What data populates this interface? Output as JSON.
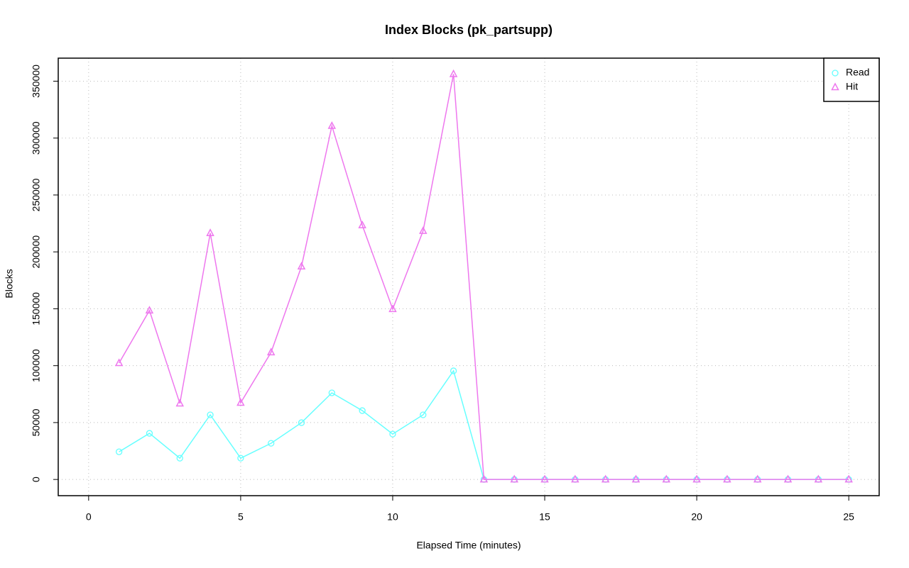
{
  "chart_data": {
    "type": "line",
    "title": "Index Blocks (pk_partsupp)",
    "x_label": "Elapsed Time (minutes)",
    "y_label": "Blocks",
    "x": [
      1,
      2,
      3,
      4,
      5,
      6,
      7,
      8,
      9,
      10,
      11,
      12,
      13,
      14,
      15,
      16,
      17,
      18,
      19,
      20,
      21,
      22,
      23,
      24,
      25
    ],
    "series": [
      {
        "name": "Read",
        "color": "#66ffff",
        "marker": "circle",
        "values": [
          24300,
          40550,
          18700,
          56800,
          18700,
          31800,
          49900,
          76100,
          60500,
          39900,
          56800,
          95460,
          0,
          0,
          0,
          0,
          0,
          0,
          0,
          0,
          0,
          0,
          0,
          0,
          0
        ]
      },
      {
        "name": "Hit",
        "color": "#ee77ee",
        "marker": "triangle",
        "values": [
          102300,
          148500,
          66800,
          216500,
          67400,
          111700,
          187200,
          310700,
          223400,
          149700,
          218400,
          356250,
          0,
          0,
          0,
          0,
          0,
          0,
          0,
          0,
          0,
          0,
          0,
          0,
          0
        ]
      }
    ],
    "xlim": [
      -1,
      26
    ],
    "xticks": [
      0,
      5,
      10,
      15,
      20,
      25
    ],
    "ylim": [
      -14240,
      370240
    ],
    "yticks": [
      0,
      50000,
      100000,
      150000,
      200000,
      250000,
      300000,
      350000
    ],
    "grid": true,
    "legend": "top-right"
  }
}
